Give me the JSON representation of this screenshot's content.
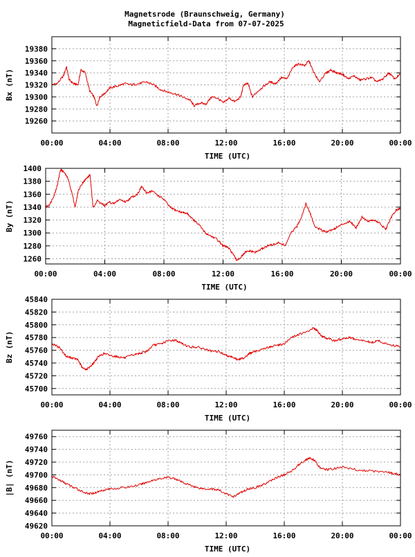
{
  "title_line1": "Magnetsrode (Braunschweig, Germany)",
  "title_line2": "Magneticfield-Data from 07-07-2025",
  "colors": {
    "series": "#e00000",
    "grid": "#a0a0a0",
    "axis": "#000000",
    "background": "#ffffff"
  },
  "chart_data": [
    {
      "type": "line",
      "ylabel": "Bx (nT)",
      "xlabel": "TIME (UTC)",
      "xlim": [
        0,
        24
      ],
      "ylim": [
        19240,
        19400
      ],
      "yticks": [
        19260,
        19280,
        19300,
        19320,
        19340,
        19360,
        19380
      ],
      "xtick_labels": [
        "00:00",
        "04:00",
        "08:00",
        "12:00",
        "16:00",
        "20:00",
        "00:00"
      ],
      "grid": true,
      "x": [
        0,
        0.4,
        0.8,
        1.0,
        1.2,
        1.5,
        1.8,
        2.0,
        2.3,
        2.6,
        2.9,
        3.1,
        3.3,
        3.6,
        4.0,
        4.5,
        5.0,
        5.5,
        6.0,
        6.5,
        7.0,
        7.5,
        8.0,
        8.5,
        9.0,
        9.5,
        9.8,
        10.2,
        10.6,
        11.0,
        11.4,
        11.8,
        12.2,
        12.6,
        13.0,
        13.2,
        13.5,
        13.8,
        14.2,
        14.6,
        15.0,
        15.4,
        15.8,
        16.2,
        16.6,
        17.0,
        17.4,
        17.7,
        18.0,
        18.4,
        18.8,
        19.2,
        19.6,
        20.0,
        20.4,
        20.8,
        21.2,
        21.6,
        22.0,
        22.4,
        22.8,
        23.2,
        23.6,
        24.0
      ],
      "values": [
        19320,
        19323,
        19335,
        19350,
        19328,
        19322,
        19320,
        19345,
        19340,
        19310,
        19300,
        19285,
        19300,
        19305,
        19315,
        19318,
        19322,
        19320,
        19322,
        19325,
        19320,
        19312,
        19308,
        19305,
        19300,
        19295,
        19285,
        19290,
        19288,
        19300,
        19298,
        19290,
        19298,
        19292,
        19300,
        19320,
        19322,
        19300,
        19310,
        19318,
        19325,
        19322,
        19332,
        19330,
        19350,
        19355,
        19352,
        19360,
        19342,
        19325,
        19338,
        19345,
        19340,
        19338,
        19330,
        19335,
        19328,
        19330,
        19332,
        19325,
        19330,
        19340,
        19330,
        19338
      ]
    },
    {
      "type": "line",
      "ylabel": "By (nT)",
      "xlabel": "TIME (UTC)",
      "xlim": [
        0,
        24
      ],
      "ylim": [
        1252,
        1400
      ],
      "yticks": [
        1260,
        1280,
        1300,
        1320,
        1340,
        1360,
        1380,
        1400
      ],
      "xtick_labels": [
        "00:00",
        "04:00",
        "08:00",
        "12:00",
        "16:00",
        "20:00",
        "00:00"
      ],
      "grid": true,
      "x": [
        0,
        0.3,
        0.6,
        0.8,
        1.0,
        1.2,
        1.5,
        1.8,
        2.0,
        2.2,
        2.5,
        2.8,
        3.0,
        3.2,
        3.5,
        3.8,
        4.0,
        4.3,
        4.6,
        5.0,
        5.4,
        5.8,
        6.2,
        6.5,
        6.8,
        7.2,
        7.6,
        8.0,
        8.4,
        8.8,
        9.2,
        9.6,
        10.0,
        10.4,
        10.8,
        11.2,
        11.6,
        12.0,
        12.3,
        12.6,
        12.9,
        13.2,
        13.5,
        13.8,
        14.2,
        14.6,
        15.0,
        15.4,
        15.8,
        16.2,
        16.6,
        17.0,
        17.3,
        17.6,
        17.9,
        18.2,
        18.6,
        19.0,
        19.4,
        19.8,
        20.2,
        20.6,
        21.0,
        21.4,
        21.8,
        22.2,
        22.6,
        23.0,
        23.4,
        23.7,
        24.0
      ],
      "values": [
        1340,
        1345,
        1360,
        1375,
        1398,
        1395,
        1385,
        1360,
        1340,
        1365,
        1378,
        1385,
        1390,
        1340,
        1350,
        1345,
        1342,
        1348,
        1345,
        1352,
        1348,
        1355,
        1360,
        1372,
        1362,
        1365,
        1358,
        1352,
        1340,
        1335,
        1332,
        1330,
        1320,
        1312,
        1300,
        1295,
        1290,
        1280,
        1278,
        1270,
        1258,
        1262,
        1270,
        1272,
        1270,
        1275,
        1280,
        1282,
        1285,
        1280,
        1300,
        1310,
        1325,
        1345,
        1330,
        1310,
        1305,
        1302,
        1305,
        1310,
        1315,
        1318,
        1308,
        1325,
        1318,
        1320,
        1315,
        1305,
        1325,
        1335,
        1338
      ]
    },
    {
      "type": "line",
      "ylabel": "Bz (nT)",
      "xlabel": "TIME (UTC)",
      "xlim": [
        0,
        24
      ],
      "ylim": [
        45690,
        45840
      ],
      "yticks": [
        45700,
        45720,
        45740,
        45760,
        45780,
        45800,
        45820,
        45840
      ],
      "xtick_labels": [
        "00:00",
        "04:00",
        "08:00",
        "12:00",
        "16:00",
        "20:00",
        "00:00"
      ],
      "grid": true,
      "x": [
        0,
        0.5,
        1.0,
        1.4,
        1.8,
        2.1,
        2.4,
        2.8,
        3.2,
        3.6,
        4.0,
        4.5,
        5.0,
        5.5,
        6.0,
        6.5,
        7.0,
        7.5,
        8.0,
        8.5,
        9.0,
        9.5,
        10.0,
        10.5,
        11.0,
        11.5,
        12.0,
        12.4,
        12.8,
        13.2,
        13.6,
        14.0,
        14.5,
        15.0,
        15.5,
        16.0,
        16.5,
        17.0,
        17.5,
        18.0,
        18.3,
        18.6,
        19.0,
        19.5,
        20.0,
        20.5,
        21.0,
        21.5,
        22.0,
        22.5,
        23.0,
        23.5,
        24.0
      ],
      "values": [
        45770,
        45765,
        45750,
        45748,
        45745,
        45732,
        45730,
        45738,
        45750,
        45755,
        45752,
        45750,
        45748,
        45752,
        45755,
        45758,
        45768,
        45770,
        45775,
        45776,
        45770,
        45765,
        45765,
        45762,
        45758,
        45758,
        45752,
        45750,
        45745,
        45748,
        45755,
        45758,
        45762,
        45765,
        45768,
        45770,
        45780,
        45785,
        45788,
        45795,
        45790,
        45782,
        45778,
        45775,
        45778,
        45780,
        45776,
        45775,
        45772,
        45775,
        45770,
        45768,
        45765
      ]
    },
    {
      "type": "line",
      "ylabel": "|B| (nT)",
      "xlabel": "TIME (UTC)",
      "xlim": [
        0,
        24
      ],
      "ylim": [
        49620,
        49770
      ],
      "yticks": [
        49620,
        49640,
        49660,
        49680,
        49700,
        49720,
        49740,
        49760
      ],
      "xtick_labels": [
        "00:00",
        "04:00",
        "08:00",
        "12:00",
        "16:00",
        "20:00",
        "00:00"
      ],
      "grid": true,
      "x": [
        0,
        0.5,
        1.0,
        1.5,
        2.0,
        2.5,
        3.0,
        3.5,
        4.0,
        5.0,
        6.0,
        6.5,
        7.0,
        7.5,
        8.0,
        8.5,
        9.0,
        9.5,
        10.0,
        10.5,
        11.0,
        11.5,
        12.0,
        12.5,
        13.0,
        13.5,
        14.0,
        14.5,
        15.0,
        15.5,
        16.0,
        16.5,
        17.0,
        17.5,
        17.8,
        18.1,
        18.5,
        19.0,
        19.5,
        20.0,
        21.0,
        22.0,
        23.0,
        23.5,
        24.0
      ],
      "values": [
        49698,
        49692,
        49686,
        49680,
        49675,
        49670,
        49672,
        49676,
        49678,
        49680,
        49684,
        49688,
        49692,
        49694,
        49696,
        49694,
        49688,
        49684,
        49680,
        49678,
        49678,
        49676,
        49670,
        49666,
        49672,
        49678,
        49680,
        49684,
        49690,
        49696,
        49700,
        49706,
        49716,
        49724,
        49726,
        49722,
        49710,
        49708,
        49710,
        49712,
        49708,
        49706,
        49705,
        49702,
        49700
      ]
    }
  ]
}
